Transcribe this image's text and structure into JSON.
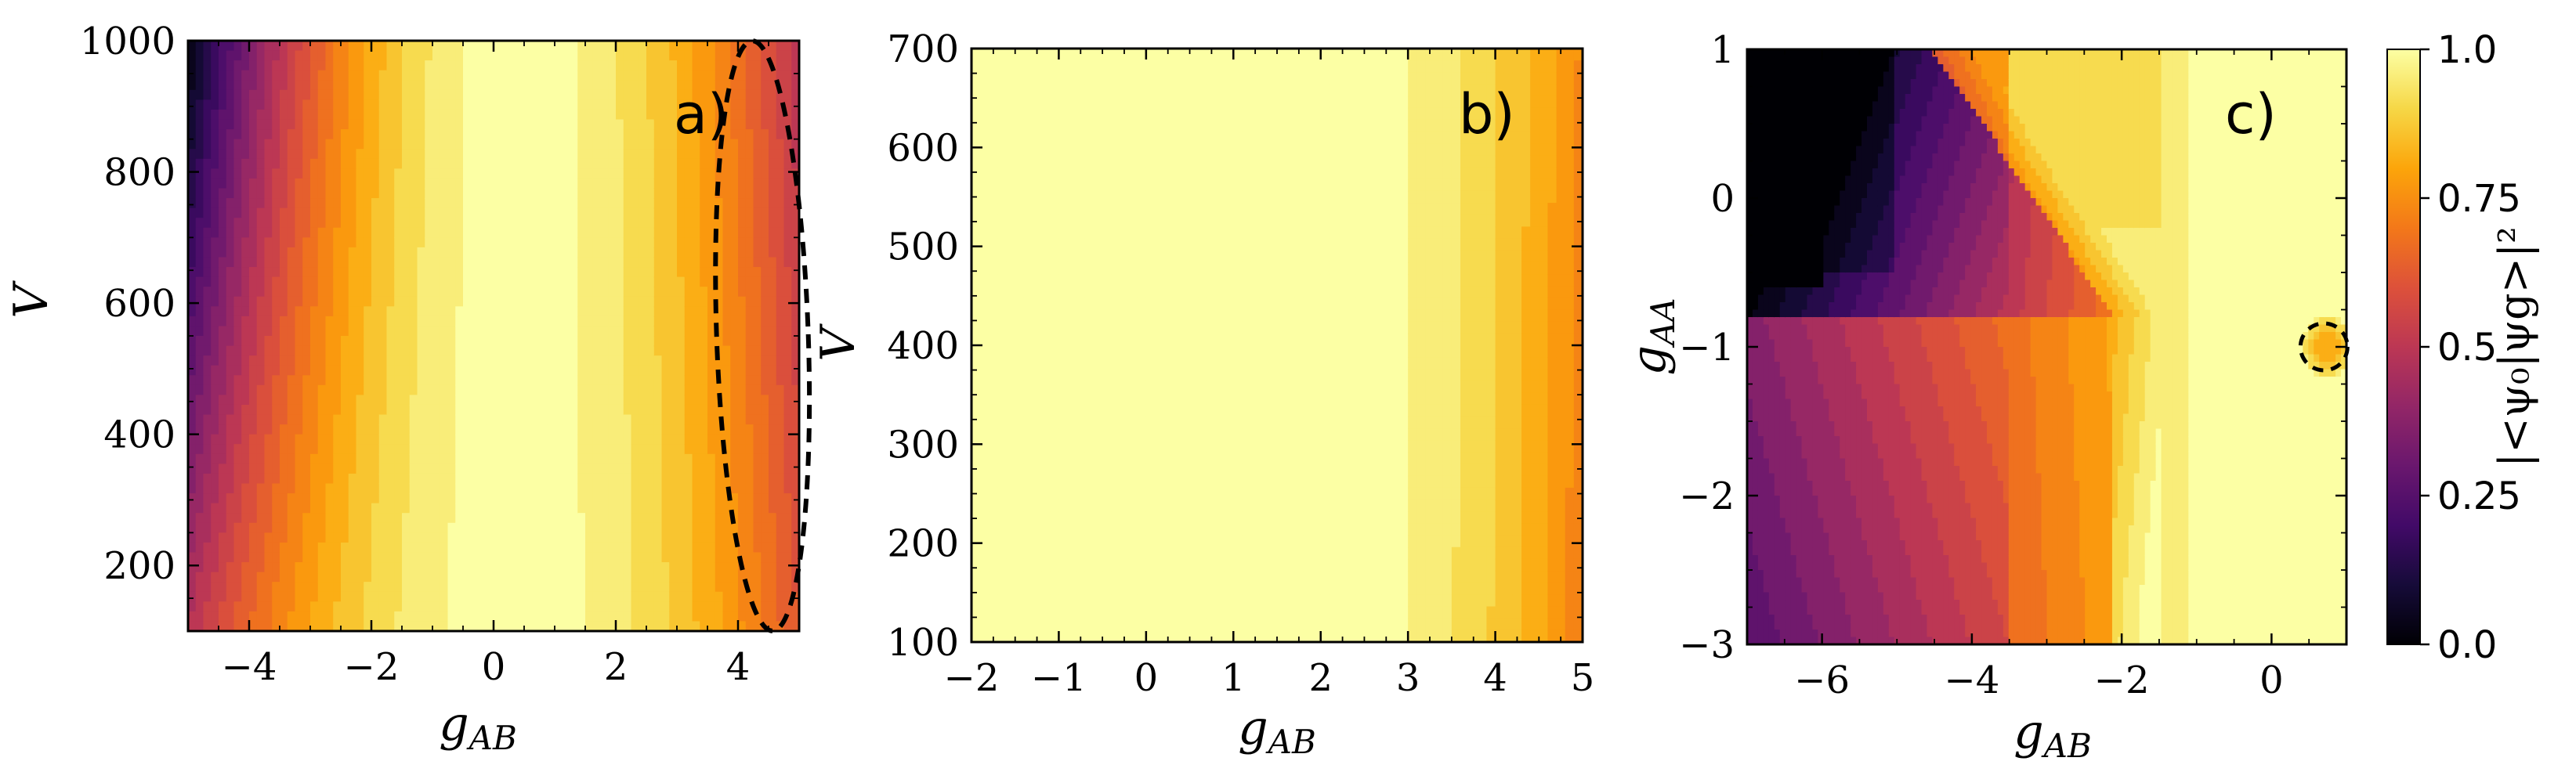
{
  "chart_data": [
    {
      "type": "heatmap",
      "panel_label": "a)",
      "xlabel": "g_{AB}",
      "ylabel": "V",
      "xlim": [
        -5,
        5
      ],
      "ylim": [
        100,
        1000
      ],
      "xticks": [
        -4,
        -2,
        0,
        2,
        4
      ],
      "yticks": [
        200,
        400,
        600,
        800,
        1000
      ],
      "xticklabels": [
        "−4",
        "−2",
        "0",
        "2",
        "4"
      ],
      "yticklabels": [
        "200",
        "400",
        "600",
        "800",
        "1000"
      ],
      "colorscale": "inferno",
      "value_range": [
        0,
        1
      ],
      "description": "overlap near 1 around g_AB 0 to 1, decreasing toward both edges; lowest (~0.05) at g_AB=-5, V=1000",
      "annotation": {
        "shape": "dashed-ellipse",
        "center": [
          4.4,
          550
        ],
        "semi_x": 0.75,
        "semi_y": 450
      }
    },
    {
      "type": "heatmap",
      "panel_label": "b)",
      "xlabel": "g_{AB}",
      "ylabel": "V",
      "xlim": [
        -2,
        5
      ],
      "ylim": [
        100,
        700
      ],
      "xticks": [
        -2,
        -1,
        0,
        1,
        2,
        3,
        4,
        5
      ],
      "yticks": [
        100,
        200,
        300,
        400,
        500,
        600,
        700
      ],
      "xticklabels": [
        "−2",
        "−1",
        "0",
        "1",
        "2",
        "3",
        "4",
        "5"
      ],
      "yticklabels": [
        "100",
        "200",
        "300",
        "400",
        "500",
        "600",
        "700"
      ],
      "colorscale": "inferno",
      "value_range": [
        0,
        1
      ],
      "description": "overlap ~1 everywhere, slight decrease to ~0.9 at g_AB=5"
    },
    {
      "type": "heatmap",
      "panel_label": "c)",
      "xlabel": "g_{AB}",
      "ylabel": "g_{AA}",
      "xlim": [
        -7,
        1
      ],
      "ylim": [
        -3,
        1
      ],
      "xticks": [
        -6,
        -4,
        -2,
        0
      ],
      "yticks": [
        -3,
        -2,
        -1,
        0,
        1
      ],
      "xticklabels": [
        "−6",
        "−4",
        "−2",
        "0"
      ],
      "yticklabels": [
        "−3",
        "−2",
        "−1",
        "0",
        "1"
      ],
      "colorscale": "inferno",
      "value_range": [
        0,
        1
      ],
      "description": "overlap ~1 for g_AB > -1.5; dark region near g_AB=-7, g_AA 0 to -0.5; V-shaped boundary meeting at g_AA=-0.8, g_AB=-1.5",
      "annotation": {
        "shape": "dashed-circle",
        "center": [
          0.7,
          -1.0
        ]
      }
    }
  ],
  "colorbar": {
    "label": "|<ψ₀|ψg>|²",
    "ticks": [
      0.0,
      0.25,
      0.5,
      0.75,
      1.0
    ],
    "ticklabels": [
      "0.0",
      "0.25",
      "0.5",
      "0.75",
      "1.0"
    ]
  }
}
